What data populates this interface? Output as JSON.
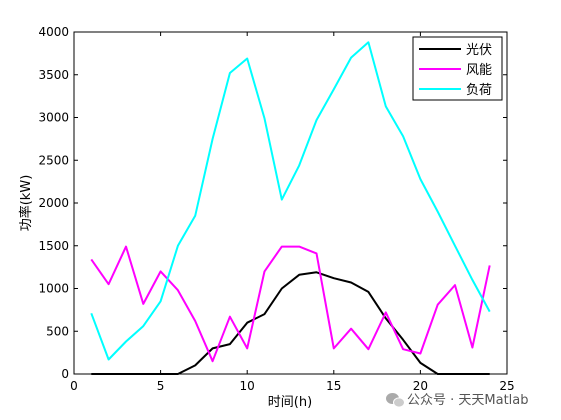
{
  "chart_data": {
    "type": "line",
    "title": "",
    "xlabel": "时间(h)",
    "ylabel": "功率(kW)",
    "xlim": [
      0,
      25
    ],
    "ylim": [
      0,
      4000
    ],
    "xticks": [
      0,
      5,
      10,
      15,
      20,
      25
    ],
    "yticks": [
      0,
      500,
      1000,
      1500,
      2000,
      2500,
      3000,
      3500,
      4000
    ],
    "grid": false,
    "legend_position": "top-right",
    "x": [
      1,
      2,
      3,
      4,
      5,
      6,
      7,
      8,
      9,
      10,
      11,
      12,
      13,
      14,
      15,
      16,
      17,
      18,
      19,
      20,
      21,
      22,
      23,
      24
    ],
    "series": [
      {
        "name": "光伏",
        "color": "#000000",
        "values": [
          0,
          0,
          0,
          0,
          0,
          0,
          100,
          300,
          350,
          600,
          700,
          1000,
          1160,
          1190,
          1120,
          1070,
          960,
          650,
          400,
          130,
          0,
          0,
          0,
          0
        ]
      },
      {
        "name": "风能",
        "color": "#ff00ff",
        "values": [
          1340,
          1050,
          1490,
          820,
          1200,
          980,
          620,
          150,
          670,
          300,
          1200,
          1490,
          1490,
          1410,
          300,
          530,
          290,
          720,
          290,
          240,
          810,
          1040,
          310,
          1270
        ]
      },
      {
        "name": "负荷",
        "color": "#00ffff",
        "values": [
          710,
          170,
          380,
          560,
          850,
          1500,
          1850,
          2750,
          3520,
          3690,
          2990,
          2040,
          2440,
          2970,
          3330,
          3700,
          3880,
          3130,
          2780,
          2280,
          1900,
          1500,
          1100,
          730
        ]
      }
    ]
  },
  "watermark": {
    "text": "公众号 · 天天Matlab"
  }
}
